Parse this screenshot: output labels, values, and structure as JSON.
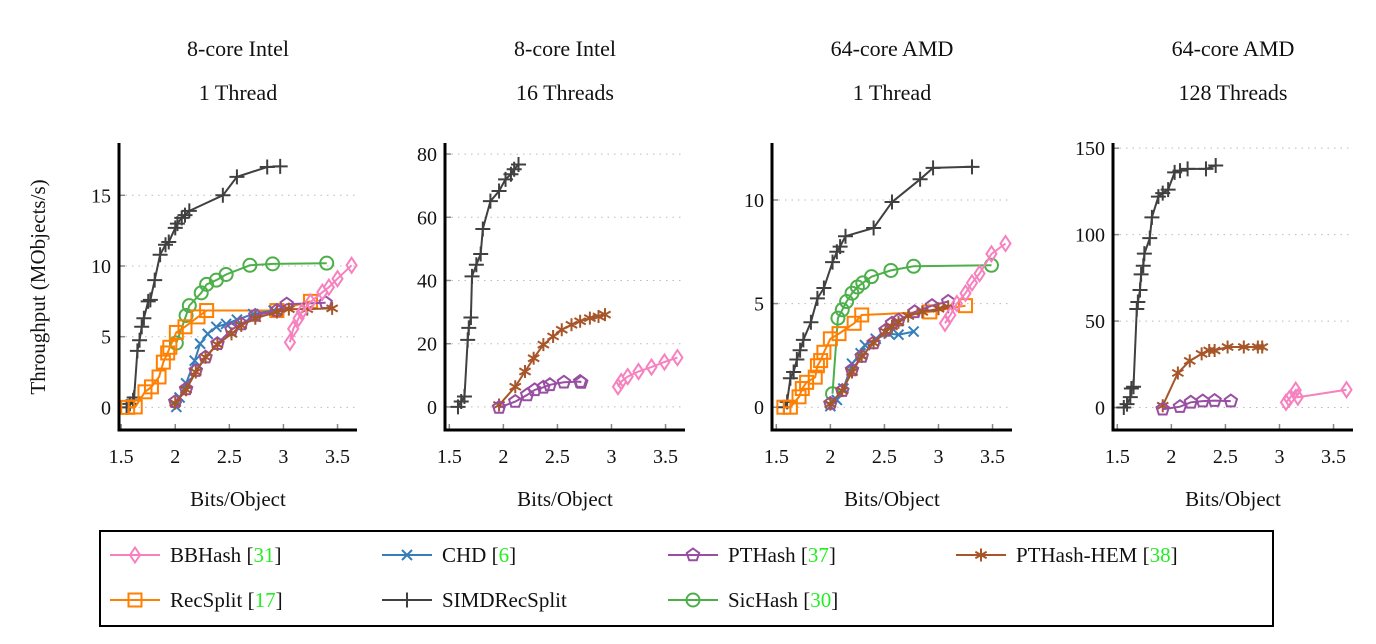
{
  "chart_data": [
    {
      "type": "line",
      "title": [
        "8-core Intel",
        "1 Thread"
      ],
      "xlabel": "Bits/Object",
      "ylabel": "Throughput (MObjects/s)",
      "xlim": [
        1.48,
        3.68
      ],
      "ylim": [
        -1.6,
        18.7
      ],
      "xticks": [
        1.5,
        2,
        2.5,
        3,
        3.5
      ],
      "xtick_labels": [
        "1.5",
        "2",
        "2.5",
        "3",
        "3.5"
      ],
      "yticks": [
        0,
        5,
        10,
        15
      ],
      "ytick_labels": [
        "0",
        "5",
        "10",
        "15"
      ],
      "grid": "horizontal dotted",
      "series": [
        {
          "name": "SIMDRecSplit",
          "x": [
            1.55,
            1.58,
            1.61,
            1.62,
            1.65,
            1.67,
            1.69,
            1.71,
            1.75,
            1.77,
            1.81,
            1.86,
            1.91,
            1.94,
            2.0,
            2.02,
            2.06,
            2.09,
            2.13,
            2.44,
            2.57,
            2.85,
            2.97
          ],
          "y": [
            0,
            0.25,
            0.5,
            0.7,
            4.0,
            4.75,
            5.7,
            6.3,
            7.5,
            7.6,
            9.0,
            10.8,
            11.5,
            11.7,
            12.7,
            13.0,
            13.4,
            13.6,
            13.9,
            15.0,
            16.3,
            17.0,
            17.05
          ]
        },
        {
          "name": "SicHash",
          "x": [
            2.01,
            2.1,
            2.13,
            2.24,
            2.29,
            2.38,
            2.47,
            2.69,
            2.9,
            3.4
          ],
          "y": [
            4.55,
            6.5,
            7.2,
            8.1,
            8.7,
            9.0,
            9.4,
            10.05,
            10.15,
            10.2
          ]
        },
        {
          "name": "RecSplit",
          "x": [
            1.56,
            1.63,
            1.72,
            1.78,
            1.85,
            1.89,
            1.93,
            1.95,
            2.01,
            2.09,
            2.21,
            2.29,
            2.94,
            3.25
          ],
          "y": [
            0,
            0.03,
            1.1,
            1.45,
            2.15,
            3.2,
            3.85,
            4.25,
            5.3,
            5.7,
            6.4,
            6.85,
            6.85,
            7.5
          ]
        },
        {
          "name": "CHD",
          "x": [
            2.01,
            2.04,
            2.1,
            2.18,
            2.23,
            2.3,
            2.38,
            2.47,
            2.57,
            2.72,
            2.91
          ],
          "y": [
            0.03,
            0.7,
            1.7,
            3.3,
            4.5,
            5.2,
            5.7,
            5.9,
            6.2,
            6.6,
            6.85
          ]
        },
        {
          "name": "PTHash",
          "x": [
            2.0,
            2.1,
            2.19,
            2.28,
            2.39,
            2.52,
            2.61,
            2.74,
            2.94,
            3.03,
            3.39
          ],
          "y": [
            0.4,
            1.3,
            2.6,
            3.55,
            4.5,
            5.5,
            5.9,
            6.5,
            6.85,
            7.3,
            7.4
          ]
        },
        {
          "name": "PTHash-HEM",
          "x": [
            2.0,
            2.1,
            2.19,
            2.28,
            2.39,
            2.52,
            2.61,
            2.74,
            2.94,
            3.05,
            3.22,
            3.45
          ],
          "y": [
            0.3,
            1.25,
            2.5,
            3.55,
            4.45,
            5.2,
            5.8,
            6.3,
            6.75,
            6.95,
            6.95,
            7.0
          ]
        },
        {
          "name": "BBHash",
          "x": [
            3.06,
            3.09,
            3.14,
            3.17,
            3.25,
            3.36,
            3.42,
            3.5,
            3.63
          ],
          "y": [
            4.6,
            5.55,
            6.3,
            6.75,
            7.45,
            8.15,
            8.5,
            9.1,
            10.05
          ]
        }
      ]
    },
    {
      "type": "line",
      "title": [
        "8-core Intel",
        "16 Threads"
      ],
      "xlabel": "Bits/Object",
      "xlim": [
        1.46,
        3.68
      ],
      "ylim": [
        -7.3,
        83.5
      ],
      "xticks": [
        1.5,
        2,
        2.5,
        3,
        3.5
      ],
      "xtick_labels": [
        "1.5",
        "2",
        "2.5",
        "3",
        "3.5"
      ],
      "yticks": [
        0,
        20,
        40,
        60,
        80
      ],
      "ytick_labels": [
        "0",
        "20",
        "40",
        "60",
        "80"
      ],
      "grid": "horizontal dotted",
      "series": [
        {
          "name": "SIMDRecSplit",
          "x": [
            1.58,
            1.61,
            1.64,
            1.67,
            1.68,
            1.7,
            1.71,
            1.75,
            1.79,
            1.81,
            1.88,
            1.96,
            2.02,
            2.07,
            2.1,
            2.14
          ],
          "y": [
            0,
            1.7,
            3.3,
            21.2,
            25,
            28.3,
            41.3,
            45,
            48.4,
            56.3,
            65.1,
            68.3,
            72,
            73.6,
            75.2,
            76.7
          ]
        },
        {
          "name": "PTHash-HEM",
          "x": [
            1.96,
            2.11,
            2.2,
            2.28,
            2.37,
            2.46,
            2.54,
            2.63,
            2.71,
            2.8,
            2.88,
            2.94
          ],
          "y": [
            0.6,
            6.4,
            11.2,
            15.4,
            19.7,
            22.3,
            24.4,
            26,
            27.1,
            28.1,
            28.6,
            29.2
          ]
        },
        {
          "name": "PTHash",
          "x": [
            1.96,
            2.11,
            2.22,
            2.29,
            2.37,
            2.43,
            2.56,
            2.71,
            2.72
          ],
          "y": [
            -0.2,
            1.7,
            3.8,
            5.4,
            6.2,
            7.0,
            7.8,
            8.0,
            7.7
          ]
        },
        {
          "name": "BBHash",
          "x": [
            3.06,
            3.09,
            3.15,
            3.25,
            3.37,
            3.49,
            3.61
          ],
          "y": [
            6.4,
            8.0,
            9.6,
            11.2,
            12.6,
            14.2,
            15.6
          ]
        }
      ]
    },
    {
      "type": "line",
      "title": [
        "64-core AMD",
        "1 Thread"
      ],
      "xlabel": "Bits/Object",
      "xlim": [
        1.46,
        3.68
      ],
      "ylim": [
        -1.1,
        12.75
      ],
      "xticks": [
        1.5,
        2,
        2.5,
        3,
        3.5
      ],
      "xtick_labels": [
        "1.5",
        "2",
        "2.5",
        "3",
        "3.5"
      ],
      "yticks": [
        0,
        5,
        10
      ],
      "ytick_labels": [
        "0",
        "5",
        "10"
      ],
      "grid": "horizontal dotted",
      "series": [
        {
          "name": "SIMDRecSplit",
          "x": [
            1.57,
            1.6,
            1.63,
            1.66,
            1.69,
            1.72,
            1.75,
            1.82,
            1.88,
            1.94,
            2.02,
            2.06,
            2.09,
            2.14,
            2.4,
            2.57,
            2.83,
            2.95,
            3.31
          ],
          "y": [
            0,
            0.26,
            1.4,
            1.7,
            2.3,
            2.75,
            3.25,
            4.1,
            5.25,
            5.75,
            7.0,
            7.5,
            7.75,
            8.25,
            8.65,
            9.9,
            11.0,
            11.55,
            11.6
          ]
        },
        {
          "name": "SicHash",
          "x": [
            2.02,
            2.07,
            2.11,
            2.15,
            2.2,
            2.25,
            2.3,
            2.38,
            2.56,
            2.77,
            3.49
          ],
          "y": [
            0.65,
            4.3,
            4.7,
            5.1,
            5.5,
            5.8,
            6.0,
            6.3,
            6.6,
            6.8,
            6.85
          ]
        },
        {
          "name": "RecSplit",
          "x": [
            1.57,
            1.63,
            1.71,
            1.74,
            1.78,
            1.86,
            1.88,
            1.91,
            1.94,
            2.0,
            2.08,
            2.22,
            2.29,
            2.92,
            3.25
          ],
          "y": [
            0,
            0,
            0.5,
            0.9,
            1.2,
            1.45,
            2.0,
            2.25,
            2.65,
            3.3,
            3.55,
            4.05,
            4.45,
            4.6,
            4.9
          ]
        },
        {
          "name": "CHD",
          "x": [
            2.0,
            2.06,
            2.12,
            2.2,
            2.28,
            2.32,
            2.42,
            2.54,
            2.63,
            2.77
          ],
          "y": [
            0.05,
            0.35,
            0.9,
            2.1,
            2.6,
            3.0,
            3.3,
            3.55,
            3.5,
            3.65
          ]
        },
        {
          "name": "PTHash",
          "x": [
            2.0,
            2.11,
            2.2,
            2.29,
            2.4,
            2.51,
            2.57,
            2.63,
            2.78,
            2.94,
            3.09
          ],
          "y": [
            0.18,
            0.8,
            1.8,
            2.45,
            3.1,
            3.7,
            4.05,
            4.2,
            4.6,
            4.9,
            5.1
          ]
        },
        {
          "name": "PTHash-HEM",
          "x": [
            2.0,
            2.11,
            2.2,
            2.29,
            2.4,
            2.51,
            2.57,
            2.63,
            2.72,
            2.85,
            3.0,
            3.09
          ],
          "y": [
            0.15,
            0.8,
            1.7,
            2.45,
            3.1,
            3.65,
            3.9,
            4.1,
            4.4,
            4.6,
            4.75,
            4.85
          ]
        },
        {
          "name": "BBHash",
          "x": [
            3.06,
            3.11,
            3.17,
            3.25,
            3.31,
            3.38,
            3.49,
            3.62
          ],
          "y": [
            4.05,
            4.45,
            5.0,
            5.5,
            6.0,
            6.45,
            7.4,
            7.9
          ]
        }
      ]
    },
    {
      "type": "line",
      "title": [
        "64-core AMD",
        "128 Threads"
      ],
      "xlabel": "Bits/Object",
      "xlim": [
        1.46,
        3.68
      ],
      "ylim": [
        -13,
        153
      ],
      "xticks": [
        1.5,
        2,
        2.5,
        3,
        3.5
      ],
      "xtick_labels": [
        "1.5",
        "2",
        "2.5",
        "3",
        "3.5"
      ],
      "yticks": [
        0,
        50,
        100,
        150
      ],
      "ytick_labels": [
        "0",
        "50",
        "100",
        "150"
      ],
      "grid": "horizontal dotted",
      "series": [
        {
          "name": "SIMDRecSplit",
          "x": [
            1.56,
            1.59,
            1.62,
            1.63,
            1.65,
            1.68,
            1.69,
            1.71,
            1.72,
            1.74,
            1.75,
            1.8,
            1.82,
            1.88,
            1.92,
            1.97,
            2.03,
            2.08,
            2.15,
            2.32,
            2.41
          ],
          "y": [
            0,
            2,
            6,
            11,
            12,
            57,
            61,
            68,
            77,
            82,
            89,
            98,
            110,
            122,
            124,
            126,
            136,
            137,
            138,
            138,
            140
          ]
        },
        {
          "name": "PTHash-HEM",
          "x": [
            1.92,
            2.06,
            2.17,
            2.28,
            2.35,
            2.4,
            2.52,
            2.67,
            2.8,
            2.84
          ],
          "y": [
            1,
            20,
            27,
            31,
            33,
            33,
            35,
            35,
            35,
            35
          ]
        },
        {
          "name": "PTHash",
          "x": [
            1.92,
            2.08,
            2.18,
            2.29,
            2.4,
            2.55
          ],
          "y": [
            -1,
            0.5,
            3,
            3.7,
            4,
            3.7
          ]
        },
        {
          "name": "BBHash",
          "x": [
            3.06,
            3.09,
            3.15,
            3.17,
            3.62
          ],
          "y": [
            3,
            5,
            10,
            6,
            10.3
          ]
        }
      ]
    }
  ],
  "legend": {
    "placement": "bottom",
    "items": [
      {
        "name": "BBHash",
        "cite": "31",
        "color": "#f781bf",
        "marker": "diamond"
      },
      {
        "name": "CHD",
        "cite": "6",
        "color": "#377eb8",
        "marker": "x"
      },
      {
        "name": "PTHash",
        "cite": "37",
        "color": "#984ea3",
        "marker": "pentagon"
      },
      {
        "name": "PTHash-HEM",
        "cite": "38",
        "color": "#a65628",
        "marker": "asterisk"
      },
      {
        "name": "RecSplit",
        "cite": "17",
        "color": "#ff7f00",
        "marker": "square"
      },
      {
        "name": "SIMDRecSplit",
        "cite": "",
        "color": "#404040",
        "marker": "plus"
      },
      {
        "name": "SicHash",
        "cite": "30",
        "color": "#4daf4a",
        "marker": "circle"
      }
    ]
  }
}
